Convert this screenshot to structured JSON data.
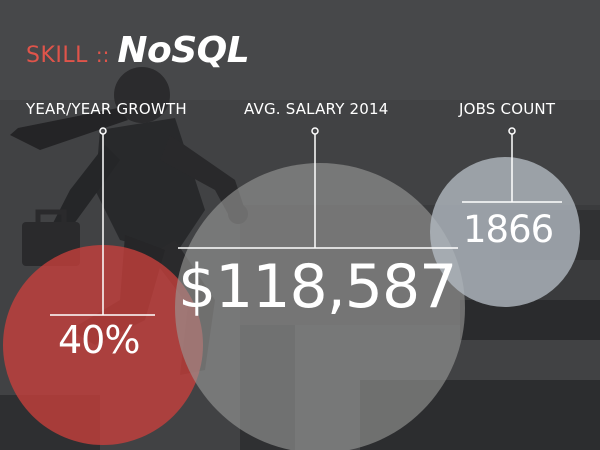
{
  "header": {
    "skill_label": "SKILL",
    "separator": "::",
    "skill_name": "NoSQL"
  },
  "stats": {
    "growth_label": "YEAR/YEAR GROWTH",
    "growth_value": "40%",
    "salary_label": "AVG. SALARY 2014",
    "salary_value": "$118,587",
    "jobs_label": "JOBS COUNT",
    "jobs_value": "1866"
  },
  "icons": {
    "figure": "running-businessman-with-briefcase-silhouette"
  },
  "colors": {
    "background": "#47484a",
    "accent": "#e0544a",
    "growth_circle": "#c9403c",
    "salary_circle": "#9a9a98",
    "jobs_circle": "#b2b9c0"
  }
}
